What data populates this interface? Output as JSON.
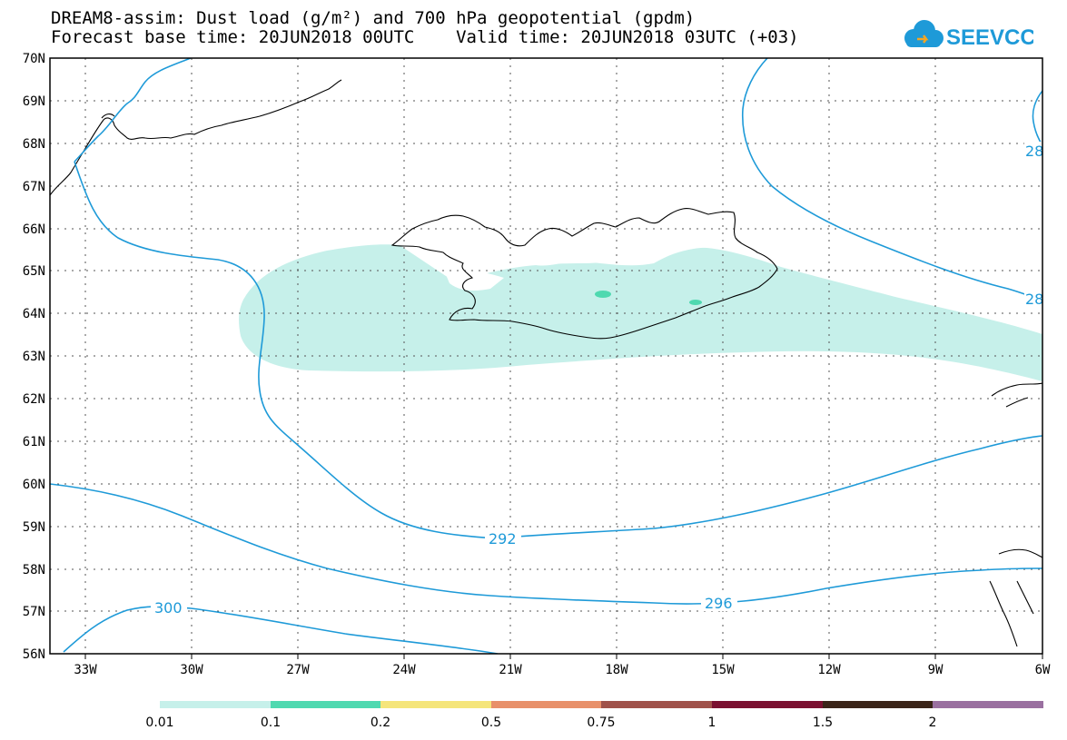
{
  "header": {
    "line1": "DREAM8-assim: Dust load (g/m²) and 700 hPa geopotential (gpdm)",
    "line2": "Forecast base time: 20JUN2018 00UTC    Valid time: 20JUN2018 03UTC (+03)"
  },
  "logo": {
    "text": "SEEVCCC",
    "color": "#1e9ad8"
  },
  "map": {
    "lon_labels": [
      "33W",
      "30W",
      "27W",
      "24W",
      "21W",
      "18W",
      "15W",
      "12W",
      "9W",
      "6W"
    ],
    "lat_labels": [
      "70N",
      "69N",
      "68N",
      "67N",
      "66N",
      "65N",
      "64N",
      "63N",
      "62N",
      "61N",
      "60N",
      "59N",
      "58N",
      "57N",
      "56N"
    ],
    "contour_labels": [
      "292",
      "296",
      "300",
      "28",
      "28"
    ],
    "contour_color": "#1e9ad8",
    "dust_color": "#c6f0ea",
    "dust_mid_color": "#4fd9b0"
  },
  "legend": {
    "labels": [
      "0.01",
      "0.1",
      "0.2",
      "0.5",
      "0.75",
      "1",
      "1.5",
      "2"
    ],
    "colors": [
      "#c6f0ea",
      "#4fd9b0",
      "#f5e57a",
      "#e8906a",
      "#a0524a",
      "#7a1030",
      "#3a2418",
      "#9a70a0"
    ]
  }
}
